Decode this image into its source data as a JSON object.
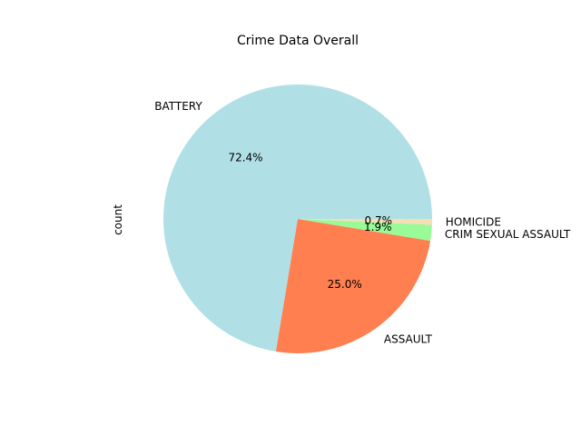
{
  "chart_data": {
    "type": "pie",
    "title": "Crime Data Overall",
    "ylabel": "count",
    "slices": [
      {
        "label": "BATTERY",
        "percent": 72.4,
        "pct_label": "72.4%",
        "color": "#b0e0e6"
      },
      {
        "label": "ASSAULT",
        "percent": 25.0,
        "pct_label": "25.0%",
        "color": "#ff7f50"
      },
      {
        "label": "CRIM SEXUAL ASSAULT",
        "percent": 1.9,
        "pct_label": "1.9%",
        "color": "#98fb98"
      },
      {
        "label": "HOMICIDE",
        "percent": 0.7,
        "pct_label": "0.7%",
        "color": "#f5deb3"
      }
    ],
    "start_angle_deg": 0,
    "counterclock": true
  }
}
